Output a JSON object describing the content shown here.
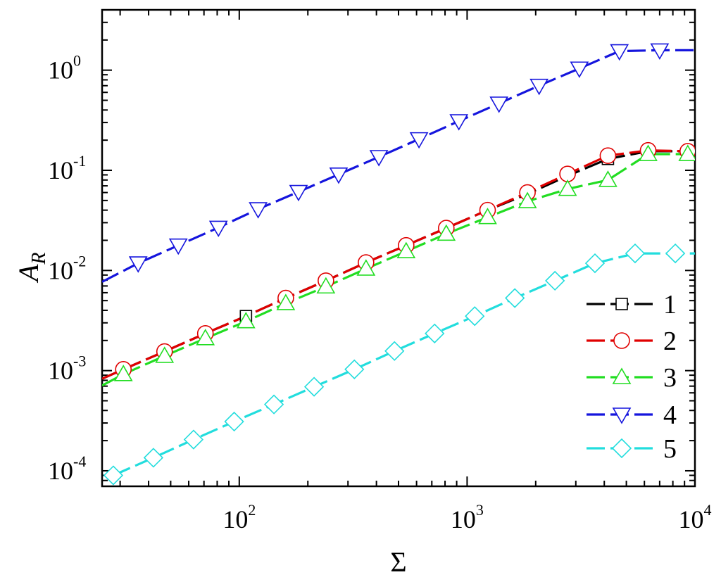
{
  "chart_data": {
    "type": "line",
    "xlabel": "Σ",
    "ylabel": {
      "main": "A",
      "sub": "R"
    },
    "xscale": "log",
    "yscale": "log",
    "xlim": [
      25,
      10000
    ],
    "ylim": [
      7e-05,
      4.0
    ],
    "grid": false,
    "legend_position": "bottom-right",
    "x_ticks": [
      {
        "base": "10",
        "exp": "2",
        "value": 100
      },
      {
        "base": "10",
        "exp": "3",
        "value": 1000
      },
      {
        "base": "10",
        "exp": "4",
        "value": 10000
      }
    ],
    "y_ticks": [
      {
        "base": "10",
        "exp": "-4",
        "value": 0.0001
      },
      {
        "base": "10",
        "exp": "-3",
        "value": 0.001
      },
      {
        "base": "10",
        "exp": "-2",
        "value": 0.01
      },
      {
        "base": "10",
        "exp": "-1",
        "value": 0.1
      },
      {
        "base": "10",
        "exp": "0",
        "value": 1
      }
    ],
    "series": [
      {
        "name": "1",
        "color": "#000000",
        "marker": "square",
        "x": [
          25,
          31,
          47,
          71,
          107,
          160,
          240,
          360,
          540,
          810,
          1230,
          1840,
          2760,
          4150,
          6230,
          9300,
          10000
        ],
        "y": [
          0.00083,
          0.00103,
          0.00155,
          0.00235,
          0.0035,
          0.0053,
          0.0079,
          0.012,
          0.0178,
          0.0265,
          0.04,
          0.058,
          0.088,
          0.13,
          0.155,
          0.155,
          0.155
        ],
        "markers_x": [
          107,
          4150
        ],
        "markers_y": [
          0.0035,
          0.13
        ]
      },
      {
        "name": "2",
        "color": "#e00000",
        "marker": "circle",
        "x": [
          25,
          31,
          47,
          71,
          107,
          160,
          240,
          360,
          540,
          810,
          1230,
          1840,
          2760,
          4150,
          6230,
          9300,
          10000
        ],
        "y": [
          0.00083,
          0.00103,
          0.00155,
          0.00235,
          0.0035,
          0.0053,
          0.0079,
          0.012,
          0.0178,
          0.0265,
          0.04,
          0.06,
          0.092,
          0.14,
          0.158,
          0.155,
          0.155
        ],
        "markers_x": [
          31,
          47,
          71,
          160,
          240,
          360,
          540,
          810,
          1230,
          1840,
          2760,
          4150,
          6230,
          9300
        ],
        "markers_y": [
          0.00103,
          0.00155,
          0.00235,
          0.0053,
          0.0079,
          0.012,
          0.0178,
          0.0265,
          0.04,
          0.06,
          0.092,
          0.14,
          0.158,
          0.155
        ]
      },
      {
        "name": "3",
        "color": "#22dd22",
        "marker": "triangle-up",
        "x": [
          25,
          31,
          47,
          71,
          107,
          160,
          240,
          360,
          540,
          810,
          1230,
          1840,
          2760,
          4150,
          6230,
          9300,
          10000
        ],
        "y": [
          0.00071,
          0.00092,
          0.0014,
          0.0021,
          0.0031,
          0.0047,
          0.0069,
          0.0104,
          0.0155,
          0.0232,
          0.034,
          0.049,
          0.065,
          0.08,
          0.145,
          0.145,
          0.145
        ],
        "markers_x": [
          31,
          47,
          71,
          107,
          160,
          240,
          360,
          540,
          810,
          1230,
          1840,
          2760,
          4150,
          6230,
          9300
        ],
        "markers_y": [
          0.00092,
          0.0014,
          0.0021,
          0.0031,
          0.0047,
          0.0069,
          0.0104,
          0.0155,
          0.0232,
          0.034,
          0.049,
          0.065,
          0.08,
          0.145,
          0.145
        ]
      },
      {
        "name": "4",
        "color": "#1515dd",
        "marker": "triangle-down",
        "x": [
          25,
          36,
          54,
          81,
          121,
          182,
          273,
          410,
          615,
          920,
          1380,
          2070,
          3110,
          4660,
          7000,
          10000
        ],
        "y": [
          0.0077,
          0.0118,
          0.0178,
          0.0268,
          0.041,
          0.061,
          0.091,
          0.136,
          0.205,
          0.31,
          0.465,
          0.7,
          1.04,
          1.55,
          1.58,
          1.58
        ],
        "markers_x": [
          36,
          54,
          81,
          121,
          182,
          273,
          410,
          615,
          920,
          1380,
          2070,
          3110,
          4660,
          7000
        ],
        "markers_y": [
          0.0118,
          0.0178,
          0.0268,
          0.041,
          0.061,
          0.091,
          0.136,
          0.205,
          0.31,
          0.465,
          0.7,
          1.04,
          1.55,
          1.58
        ]
      },
      {
        "name": "5",
        "color": "#22dddd",
        "marker": "diamond",
        "x": [
          28,
          42,
          63,
          95,
          142,
          213,
          320,
          480,
          720,
          1080,
          1620,
          2430,
          3640,
          5460,
          8200,
          10000
        ],
        "y": [
          9e-05,
          0.000135,
          0.000205,
          0.00031,
          0.00046,
          0.00069,
          0.00103,
          0.00157,
          0.00235,
          0.0035,
          0.0053,
          0.0079,
          0.0118,
          0.0148,
          0.0148,
          0.0148
        ],
        "markers_x": [
          28,
          42,
          63,
          95,
          142,
          213,
          320,
          480,
          720,
          1080,
          1620,
          2430,
          3640,
          5460,
          8200
        ],
        "markers_y": [
          9e-05,
          0.000135,
          0.000205,
          0.00031,
          0.00046,
          0.00069,
          0.00103,
          0.00157,
          0.00235,
          0.0035,
          0.0053,
          0.0079,
          0.0118,
          0.0148,
          0.0148
        ]
      }
    ]
  }
}
